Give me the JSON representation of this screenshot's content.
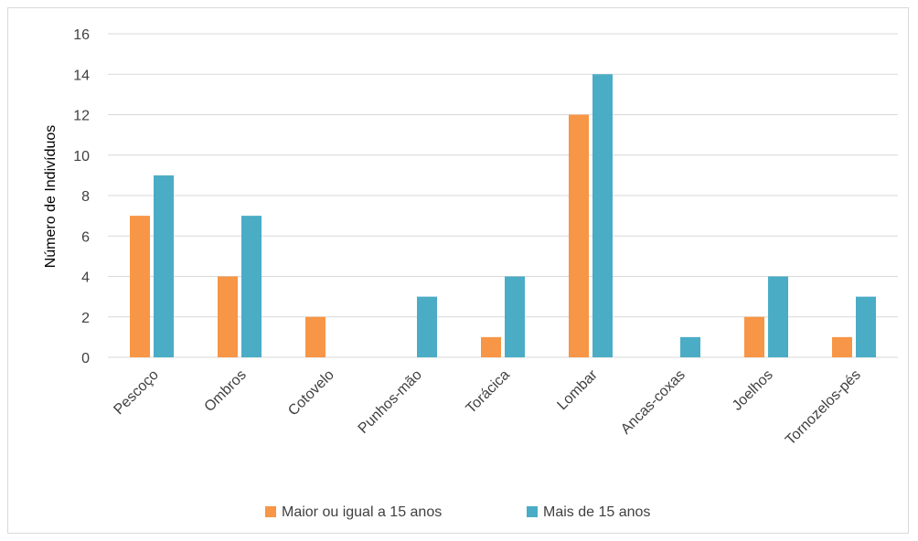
{
  "chart_data": {
    "type": "bar",
    "categories": [
      "Pescoço",
      "Ombros",
      "Cotovelo",
      "Punhos-mão",
      "Torácica",
      "Lombar",
      "Ancas-coxas",
      "Joelhos",
      "Tornozelos-pés"
    ],
    "series": [
      {
        "name": "Maior ou igual a 15 anos",
        "color": "#f79646",
        "values": [
          7,
          4,
          2,
          0,
          1,
          12,
          0,
          2,
          1
        ]
      },
      {
        "name": "Mais de 15 anos",
        "color": "#4bacc6",
        "values": [
          9,
          7,
          0,
          3,
          4,
          14,
          1,
          4,
          3
        ]
      }
    ],
    "ylabel": "Número de Indivíduos",
    "xlabel": "",
    "ylim": [
      0,
      16
    ],
    "yticks": [
      0,
      2,
      4,
      6,
      8,
      10,
      12,
      14,
      16
    ],
    "grid": true,
    "legend_position": "bottom",
    "gridline_color": "#d9d9d9"
  }
}
